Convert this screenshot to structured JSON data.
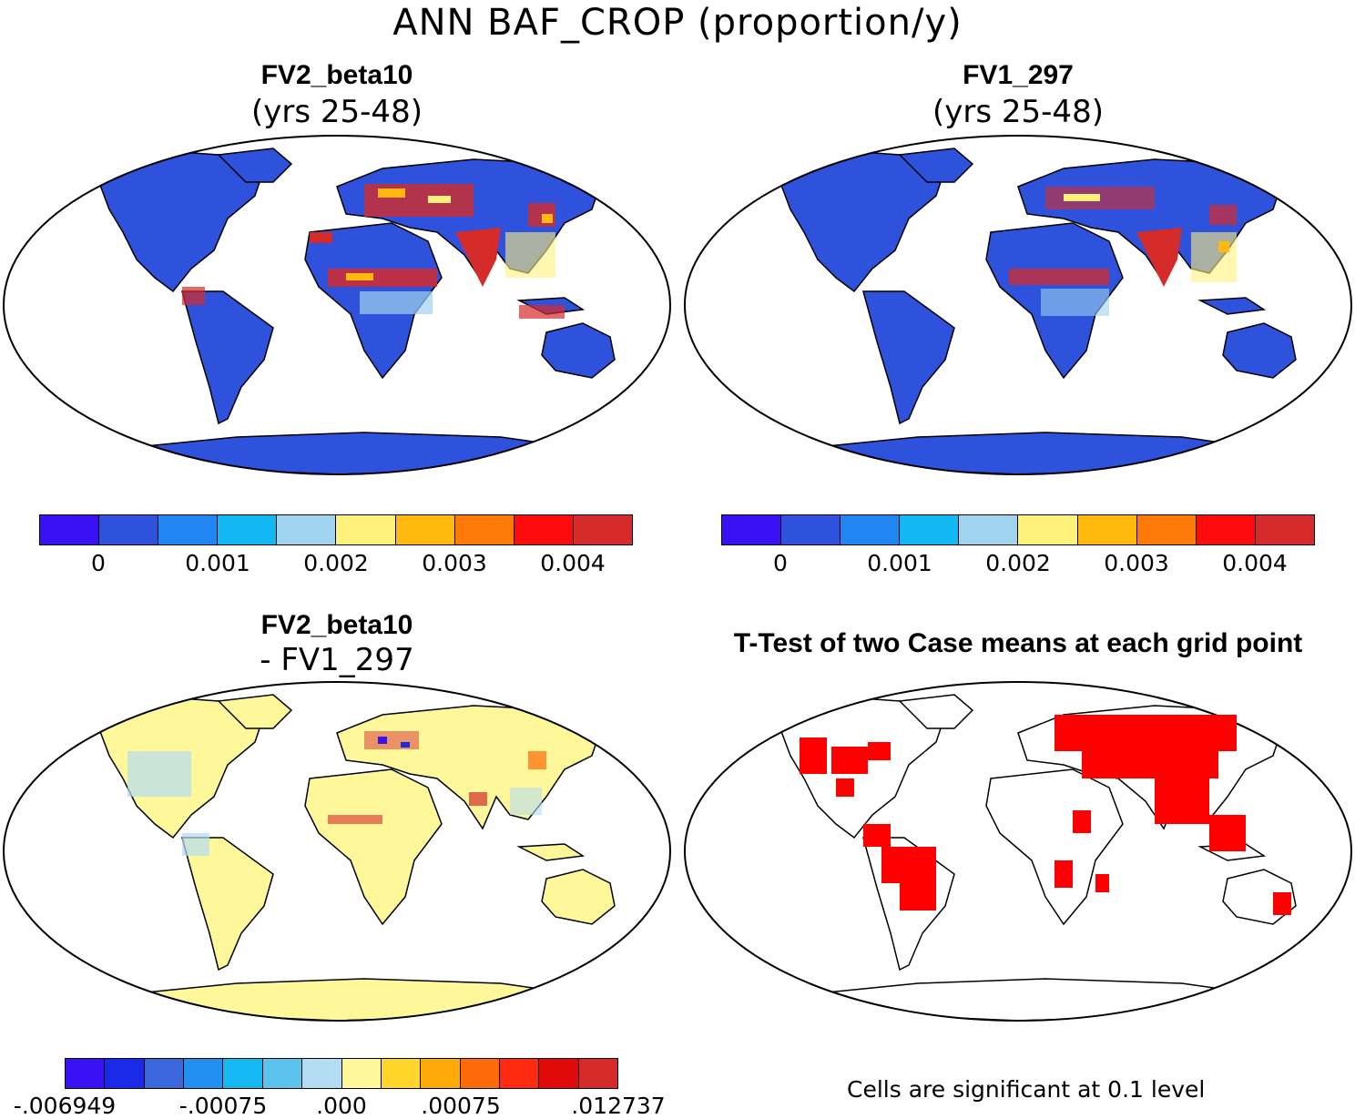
{
  "figure": {
    "title": "ANN BAF_CROP (proportion/y)"
  },
  "panels": [
    {
      "id": "top-left",
      "title": "FV2_beta10",
      "subtitle": "(yrs 25-48)",
      "colorbar": {
        "colors": [
          "#3a10f5",
          "#2f52dc",
          "#2185f2",
          "#12b8f2",
          "#9fd3ee",
          "#fff27c",
          "#ffb90f",
          "#ff7a08",
          "#fc0c0c",
          "#d52b2b"
        ],
        "labels": [
          "0",
          "0.001",
          "0.002",
          "0.003",
          "0.004"
        ]
      }
    },
    {
      "id": "top-right",
      "title": "FV1_297",
      "subtitle": "(yrs 25-48)",
      "colorbar": {
        "colors": [
          "#3a10f5",
          "#2f52dc",
          "#2185f2",
          "#12b8f2",
          "#9fd3ee",
          "#fff27c",
          "#ffb90f",
          "#ff7a08",
          "#fc0c0c",
          "#d52b2b"
        ],
        "labels": [
          "0",
          "0.001",
          "0.002",
          "0.003",
          "0.004"
        ]
      }
    },
    {
      "id": "bottom-left",
      "title": "FV2_beta10",
      "subtitle": "- FV1_297",
      "colorbar": {
        "colors": [
          "#3a10f5",
          "#1a2ae8",
          "#3a67dc",
          "#2190f2",
          "#14b8f2",
          "#5cc2ee",
          "#b4dcf2",
          "#fff89a",
          "#ffd52a",
          "#ffa80a",
          "#ff6a0a",
          "#ff2a10",
          "#e00a0a",
          "#d52b2b"
        ],
        "labels": [
          "-.006949",
          "-.00075",
          ".000",
          ".00075",
          ".012737"
        ]
      }
    },
    {
      "id": "bottom-right",
      "title": "T-Test of two Case means at each grid point",
      "note": "Cells are significant at 0.1 level"
    }
  ],
  "map_colors": {
    "land_low": "#2f52dc",
    "hot": "#d52b2b",
    "hot2": "#fc0c0c",
    "warm": "#ffb90f",
    "pale": "#fff27c",
    "light": "#9fd3ee",
    "diff_land": "#fff89a",
    "diff_light": "#b4dcf2",
    "sig": "#ff0000",
    "outline": "#000000"
  }
}
